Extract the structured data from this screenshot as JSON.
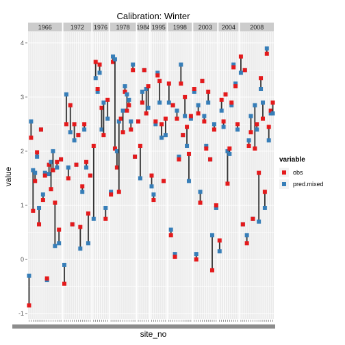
{
  "chart_data": {
    "type": "scatter",
    "title": "Calibration: Winter",
    "xlabel": "site_no",
    "ylabel": "value",
    "ylim": [
      -1.1,
      4.2
    ],
    "yticks": [
      -1,
      0,
      1,
      2,
      3,
      4
    ],
    "grid": true,
    "legend": {
      "title": "variable",
      "position": "right",
      "entries": [
        {
          "name": "obs",
          "color": "#e41a1c"
        },
        {
          "name": "pred.mixed",
          "color": "#377eb8"
        }
      ]
    },
    "facets": [
      {
        "label": "1966",
        "points": [
          {
            "obs": -0.85,
            "pred": -0.3
          },
          {
            "obs": 2.25,
            "pred": 2.55
          },
          {
            "obs": 0.9,
            "pred": 1.65
          },
          {
            "obs": 1.45,
            "pred": 1.6
          },
          {
            "obs": 1.98,
            "pred": 1.9
          },
          {
            "obs": 0.65,
            "pred": 0.95
          },
          {
            "obs": 2.4,
            "pred": 2.4
          },
          {
            "obs": 1.1,
            "pred": 1.2
          },
          {
            "obs": 1.55,
            "pred": 1.6
          },
          {
            "obs": -0.35,
            "pred": -0.38
          },
          {
            "obs": 1.75,
            "pred": 1.58
          },
          {
            "obs": 1.3,
            "pred": 1.8
          },
          {
            "obs": 1.65,
            "pred": 2.0
          },
          {
            "obs": 1.05,
            "pred": 0.25
          },
          {
            "obs": 1.8,
            "pred": 1.7
          },
          {
            "obs": 0.55,
            "pred": 0.3
          },
          {
            "obs": 1.85,
            "pred": 1.85
          }
        ]
      },
      {
        "label": "1972",
        "points": [
          {
            "obs": -0.45,
            "pred": -0.1
          },
          {
            "obs": 2.5,
            "pred": 3.05
          },
          {
            "obs": 1.5,
            "pred": 1.7
          },
          {
            "obs": 2.85,
            "pred": 2.35
          },
          {
            "obs": 0.65,
            "pred": 0.65
          },
          {
            "obs": 2.5,
            "pred": 2.2
          },
          {
            "obs": 1.75,
            "pred": 1.75
          },
          {
            "obs": 2.3,
            "pred": 2.3
          },
          {
            "obs": 0.6,
            "pred": 0.2
          },
          {
            "obs": 1.35,
            "pred": 1.25
          },
          {
            "obs": 2.5,
            "pred": 2.4
          },
          {
            "obs": 1.8,
            "pred": 1.7
          },
          {
            "obs": 0.85,
            "pred": 0.3
          },
          {
            "obs": 1.55,
            "pred": 1.55
          }
        ]
      },
      {
        "label": "1976",
        "points": [
          {
            "obs": 2.1,
            "pred": 0.75
          },
          {
            "obs": 3.65,
            "pred": 3.35
          },
          {
            "obs": 3.15,
            "pred": 3.1
          },
          {
            "obs": 3.6,
            "pred": 3.45
          },
          {
            "obs": 2.8,
            "pred": 2.4
          },
          {
            "obs": 2.3,
            "pred": 2.9
          },
          {
            "obs": 0.75,
            "pred": 0.95
          },
          {
            "obs": 2.95,
            "pred": 2.6
          }
        ]
      },
      {
        "label": "1978",
        "points": [
          {
            "obs": 1.2,
            "pred": 1.25
          },
          {
            "obs": 3.65,
            "pred": 3.75
          },
          {
            "obs": 2.05,
            "pred": 3.7
          },
          {
            "obs": 1.7,
            "pred": 2.0
          },
          {
            "obs": 1.25,
            "pred": 2.55
          },
          {
            "obs": 2.6,
            "pred": 2.6
          },
          {
            "obs": 2.35,
            "pred": 2.75
          },
          {
            "obs": 3.1,
            "pred": 3.2
          },
          {
            "obs": 2.75,
            "pred": 3.05
          },
          {
            "obs": 2.85,
            "pred": 2.95
          },
          {
            "obs": 2.4,
            "pred": 2.55
          },
          {
            "obs": 3.5,
            "pred": 3.6
          },
          {
            "obs": 1.9,
            "pred": 1.9
          }
        ]
      },
      {
        "label": "1984",
        "points": [
          {
            "obs": 2.55,
            "pred": 2.55
          },
          {
            "obs": 2.1,
            "pred": 1.5
          },
          {
            "obs": 2.9,
            "pred": 3.1
          },
          {
            "obs": 3.5,
            "pred": 3.5
          },
          {
            "obs": 2.7,
            "pred": 3.15
          },
          {
            "obs": 3.2,
            "pred": 2.8
          }
        ]
      },
      {
        "label": "1995",
        "points": [
          {
            "obs": 1.55,
            "pred": 1.35
          },
          {
            "obs": 1.1,
            "pred": 1.2
          },
          {
            "obs": 2.55,
            "pred": 2.5
          },
          {
            "obs": 3.4,
            "pred": 3.45
          },
          {
            "obs": 3.3,
            "pred": 2.9
          },
          {
            "obs": 2.5,
            "pred": 2.25
          },
          {
            "obs": 1.45,
            "pred": 1.45
          },
          {
            "obs": 2.6,
            "pred": 2.3
          }
        ]
      },
      {
        "label": "1998",
        "points": [
          {
            "obs": 3.25,
            "pred": 2.9
          },
          {
            "obs": 0.45,
            "pred": 0.55
          },
          {
            "obs": 2.85,
            "pred": 2.85
          },
          {
            "obs": 0.05,
            "pred": 0.1
          },
          {
            "obs": 2.6,
            "pred": 2.75
          },
          {
            "obs": 1.85,
            "pred": 1.9
          },
          {
            "obs": 3.25,
            "pred": 3.6
          },
          {
            "obs": 2.3,
            "pred": 2.3
          },
          {
            "obs": 3.0,
            "pred": 2.65
          },
          {
            "obs": 2.45,
            "pred": 2.1
          },
          {
            "obs": 1.95,
            "pred": 1.45
          },
          {
            "obs": 2.65,
            "pred": 2.6
          }
        ]
      },
      {
        "label": "2003",
        "points": [
          {
            "obs": 3.15,
            "pred": 3.1
          },
          {
            "obs": 0.0,
            "pred": 0.1
          },
          {
            "obs": 2.7,
            "pred": 2.85
          },
          {
            "obs": 1.05,
            "pred": 1.25
          },
          {
            "obs": 3.3,
            "pred": 3.3
          },
          {
            "obs": 2.55,
            "pred": 2.65
          },
          {
            "obs": 2.05,
            "pred": 2.1
          },
          {
            "obs": 3.1,
            "pred": 2.9
          },
          {
            "obs": 1.85,
            "pred": 1.85
          },
          {
            "obs": -0.2,
            "pred": 0.45
          },
          {
            "obs": 2.4,
            "pred": 2.5
          },
          {
            "obs": 1.0,
            "pred": 0.95
          }
        ]
      },
      {
        "label": "2004",
        "points": [
          {
            "obs": 0.35,
            "pred": 0.15
          },
          {
            "obs": 2.95,
            "pred": 2.75
          },
          {
            "obs": 2.55,
            "pred": 2.45
          },
          {
            "obs": 3.05,
            "pred": 3.05
          },
          {
            "obs": 1.4,
            "pred": 2.0
          },
          {
            "obs": 2.05,
            "pred": 1.95
          },
          {
            "obs": 2.9,
            "pred": 2.85
          },
          {
            "obs": 3.55,
            "pred": 3.6
          },
          {
            "obs": 3.2,
            "pred": 3.25
          },
          {
            "obs": 2.5,
            "pred": 2.4
          }
        ]
      },
      {
        "label": "2008",
        "points": [
          {
            "obs": 3.75,
            "pred": 3.45
          },
          {
            "obs": 0.65,
            "pred": 0.65
          },
          {
            "obs": 3.5,
            "pred": 3.5
          },
          {
            "obs": 0.3,
            "pred": 0.45
          },
          {
            "obs": 2.1,
            "pred": 2.2
          },
          {
            "obs": 2.35,
            "pred": 2.65
          },
          {
            "obs": 0.75,
            "pred": 0.75
          },
          {
            "obs": 2.05,
            "pred": 2.85
          },
          {
            "obs": 2.5,
            "pred": 2.4
          },
          {
            "obs": 1.6,
            "pred": 0.7
          },
          {
            "obs": 3.35,
            "pred": 3.15
          },
          {
            "obs": 2.6,
            "pred": 2.9
          },
          {
            "obs": 1.25,
            "pred": 0.95
          },
          {
            "obs": 3.8,
            "pred": 3.9
          },
          {
            "obs": 2.45,
            "pred": 2.2
          },
          {
            "obs": 2.75,
            "pred": 2.7
          },
          {
            "obs": 2.9,
            "pred": 2.7
          }
        ]
      }
    ]
  }
}
